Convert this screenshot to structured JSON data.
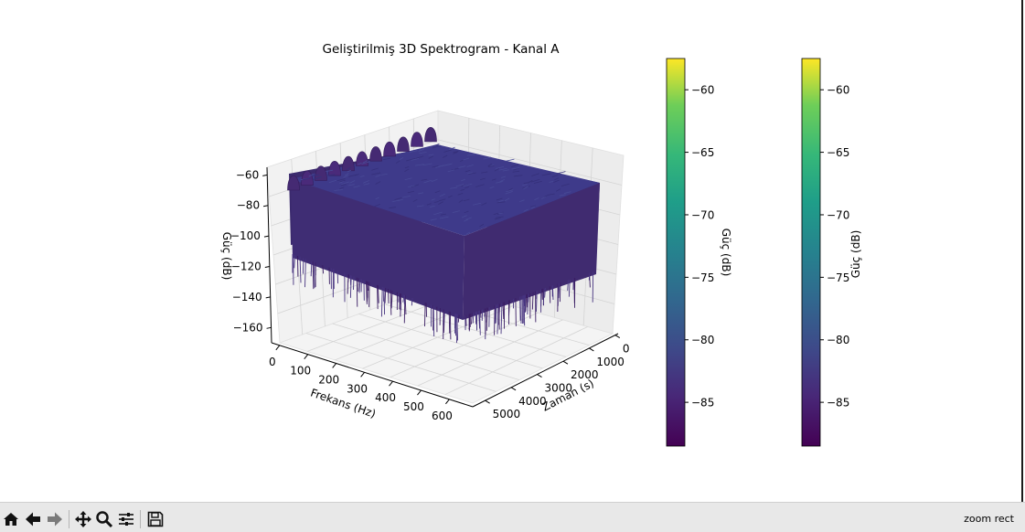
{
  "chart_data": {
    "type": "surface3d",
    "title": "Geliştirilmiş 3D Spektrogram - Kanal A",
    "xlabel": "Frekans (Hz)",
    "ylabel": "Zaman (s)",
    "zlabel": "Güç (dB)",
    "x_ticks": [
      0,
      100,
      200,
      300,
      400,
      500,
      600
    ],
    "y_ticks": [
      0,
      1000,
      2000,
      3000,
      4000,
      5000
    ],
    "z_ticks": [
      -60,
      -80,
      -100,
      -120,
      -140,
      -160
    ],
    "xlim": [
      0,
      640
    ],
    "ylim": [
      0,
      5200
    ],
    "zlim": [
      -170,
      -55
    ],
    "surface_level_db": -82,
    "peak_db": -60,
    "trough_db": -150,
    "peak_count": 11,
    "peaks_frequency_hz": 0,
    "colormap": "viridis",
    "colorbars": [
      {
        "label": "Güç (dB)",
        "ticks": [
          -60,
          -65,
          -70,
          -75,
          -80,
          -85
        ],
        "vmin": -88.5,
        "vmax": -57.5
      },
      {
        "label": "Güç (dB)",
        "ticks": [
          -60,
          -65,
          -70,
          -75,
          -80,
          -85
        ],
        "vmin": -88.5,
        "vmax": -57.5
      }
    ],
    "colors": {
      "low": "#440154",
      "mid": "#21918c",
      "high": "#fde725",
      "surface": "#3e3a8a"
    }
  },
  "toolbar": {
    "tools": [
      "home-icon",
      "back-icon",
      "forward-icon",
      "pan-icon",
      "zoom-icon",
      "configure-subplots-icon",
      "save-icon"
    ],
    "status": "zoom rect"
  }
}
